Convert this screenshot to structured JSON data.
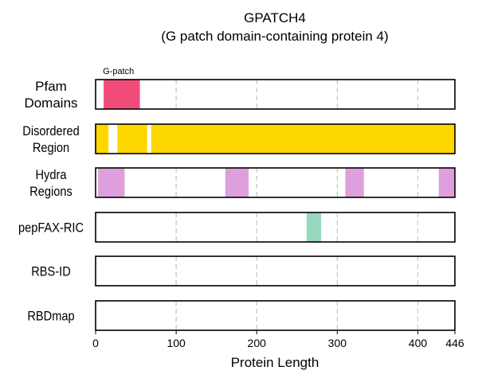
{
  "chart_data": {
    "type": "bar",
    "title": [
      "GPATCH4",
      "(G patch domain-containing protein 4)"
    ],
    "xlabel": "Protein Length",
    "xlim": [
      0,
      446
    ],
    "xticks": [
      0,
      100,
      200,
      300,
      400,
      446
    ],
    "grid": true,
    "tracks": [
      {
        "label": [
          "Pfam",
          "Domains"
        ],
        "color": "#f24d7a",
        "segments": [
          {
            "start": 10,
            "end": 55,
            "label": "G-patch"
          }
        ]
      },
      {
        "label": [
          "Disordered",
          "Region"
        ],
        "color": "#ffd700",
        "segments": [
          {
            "start": 0,
            "end": 16
          },
          {
            "start": 27,
            "end": 64
          },
          {
            "start": 69,
            "end": 446
          }
        ]
      },
      {
        "label": [
          "Hydra",
          "Regions"
        ],
        "color": "#dda0dd",
        "segments": [
          {
            "start": 3,
            "end": 36
          },
          {
            "start": 161,
            "end": 190
          },
          {
            "start": 310,
            "end": 333
          },
          {
            "start": 426,
            "end": 446
          }
        ]
      },
      {
        "label": [
          "pepFAX-RIC"
        ],
        "color": "#98d8be",
        "segments": [
          {
            "start": 262,
            "end": 280
          }
        ]
      },
      {
        "label": [
          "RBS-ID"
        ],
        "color": "#98d8be",
        "segments": []
      },
      {
        "label": [
          "RBDmap"
        ],
        "color": "#98d8be",
        "segments": []
      }
    ]
  }
}
